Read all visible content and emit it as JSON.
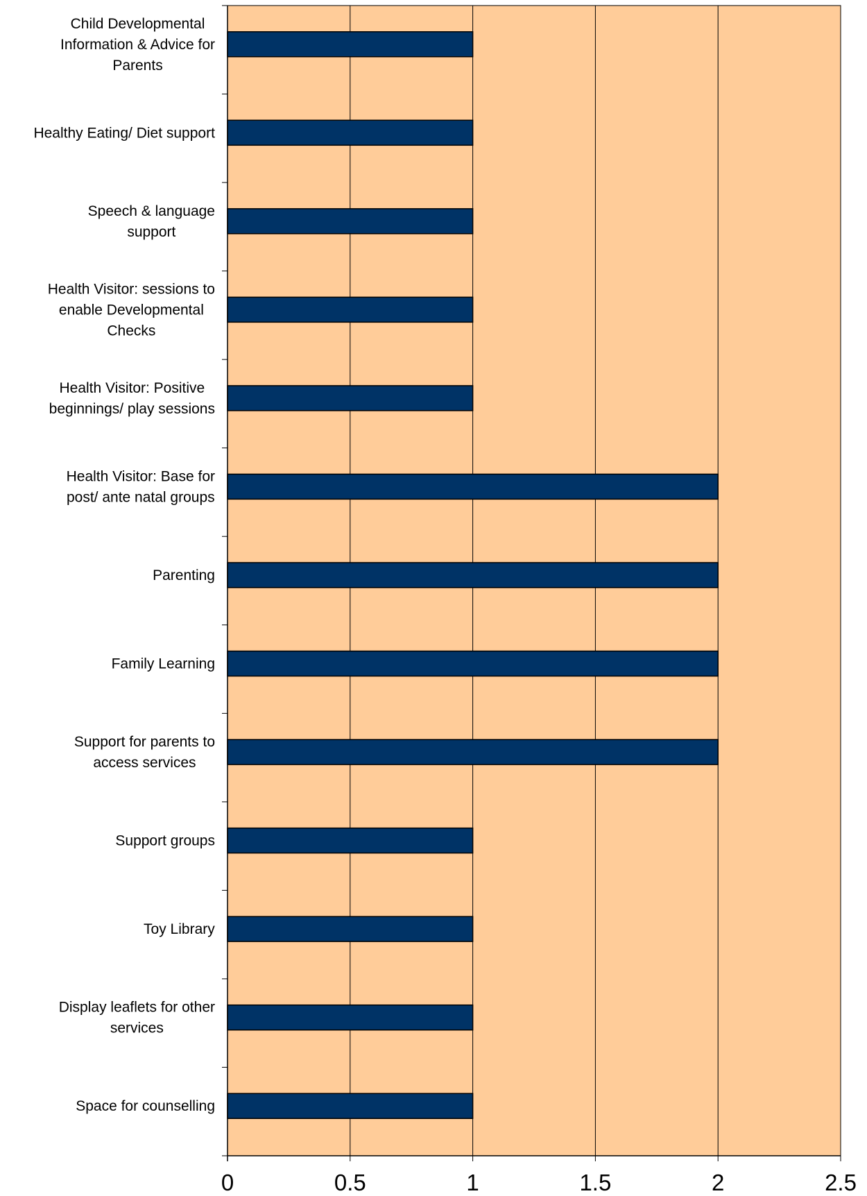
{
  "colors": {
    "plot_background": "#FFCC99",
    "bar_fill": "#003366",
    "bar_stroke": "#000000",
    "gridline": "#000000",
    "axis": "#000000"
  },
  "chart_data": {
    "type": "bar",
    "orientation": "horizontal",
    "title": "",
    "xlabel": "",
    "ylabel": "",
    "grid": "vertical gridlines on",
    "legend": "none",
    "xlim": [
      0,
      2.5
    ],
    "x_ticks": [
      "0",
      "0.5",
      "1",
      "1.5",
      "2",
      "2.5"
    ],
    "categories": [
      [
        "Child Developmental",
        "Information & Advice for",
        "Parents"
      ],
      [
        "Healthy Eating/ Diet support"
      ],
      [
        "Speech & language",
        "support"
      ],
      [
        "Health Visitor: sessions to",
        "enable  Developmental",
        "Checks"
      ],
      [
        "Health Visitor: Positive",
        "beginnings/ play sessions"
      ],
      [
        "Health Visitor: Base for",
        "post/ ante natal groups"
      ],
      [
        "Parenting"
      ],
      [
        "Family Learning"
      ],
      [
        "Support for parents to",
        "access services"
      ],
      [
        "Support groups"
      ],
      [
        "Toy Library"
      ],
      [
        "Display leaflets for other",
        "services"
      ],
      [
        "Space for counselling"
      ]
    ],
    "values": [
      1,
      1,
      1,
      1,
      1,
      2,
      2,
      2,
      2,
      1,
      1,
      1,
      1
    ]
  }
}
